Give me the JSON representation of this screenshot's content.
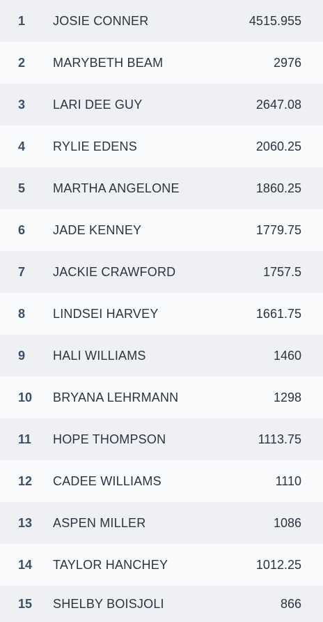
{
  "leaderboard": {
    "rows": [
      {
        "rank": "1",
        "name": "JOSIE CONNER",
        "score": "4515.955"
      },
      {
        "rank": "2",
        "name": "MARYBETH BEAM",
        "score": "2976"
      },
      {
        "rank": "3",
        "name": "LARI DEE GUY",
        "score": "2647.08"
      },
      {
        "rank": "4",
        "name": "RYLIE EDENS",
        "score": "2060.25"
      },
      {
        "rank": "5",
        "name": "MARTHA ANGELONE",
        "score": "1860.25"
      },
      {
        "rank": "6",
        "name": "JADE KENNEY",
        "score": "1779.75"
      },
      {
        "rank": "7",
        "name": "JACKIE CRAWFORD",
        "score": "1757.5"
      },
      {
        "rank": "8",
        "name": "LINDSEI HARVEY",
        "score": "1661.75"
      },
      {
        "rank": "9",
        "name": "HALI WILLIAMS",
        "score": "1460"
      },
      {
        "rank": "10",
        "name": "BRYANA LEHRMANN",
        "score": "1298"
      },
      {
        "rank": "11",
        "name": "HOPE THOMPSON",
        "score": "1113.75"
      },
      {
        "rank": "12",
        "name": "CADEE WILLIAMS",
        "score": "1110"
      },
      {
        "rank": "13",
        "name": "ASPEN MILLER",
        "score": "1086"
      },
      {
        "rank": "14",
        "name": "TAYLOR HANCHEY",
        "score": "1012.25"
      },
      {
        "rank": "15",
        "name": "SHELBY BOISJOLI",
        "score": "866"
      }
    ]
  }
}
